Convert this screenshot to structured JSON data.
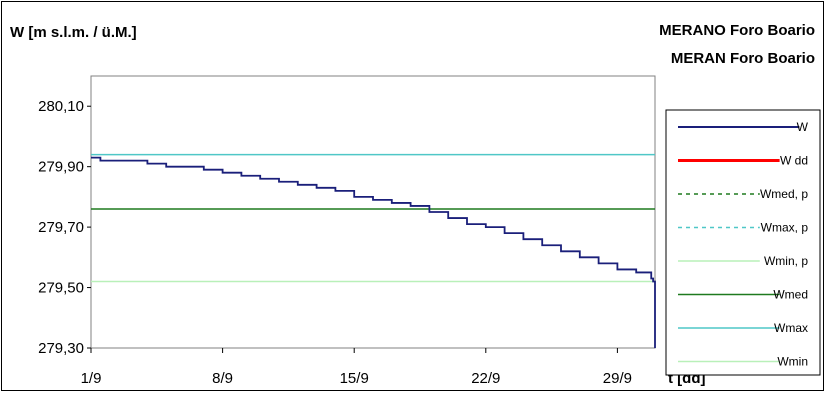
{
  "chart_data": {
    "type": "line",
    "title": "MERANO Foro Boario",
    "subtitle": "MERAN Foro Boario",
    "ylabel": "W [m s.l.m. / ü.M.]",
    "xlabel": "t [dd]",
    "ylim": [
      279.3,
      280.2
    ],
    "yticks": [
      "279,30",
      "279,50",
      "279,70",
      "279,90",
      "280,10"
    ],
    "ytick_values": [
      279.3,
      279.5,
      279.7,
      279.9,
      280.1
    ],
    "xlim": [
      1,
      31
    ],
    "xticks": [
      "1/9",
      "8/9",
      "15/9",
      "22/9",
      "29/9"
    ],
    "xtick_values": [
      1,
      8,
      15,
      22,
      29
    ],
    "grid": false,
    "legend_position": "right",
    "legend": [
      {
        "name": "W",
        "color": "#1a1f7a",
        "style": "solid"
      },
      {
        "name": "W dd",
        "color": "#ff0000",
        "style": "solid"
      },
      {
        "name": "Wmed, p",
        "color": "#1f7a1f",
        "style": "dashed"
      },
      {
        "name": "Wmax, p",
        "color": "#4fc7c7",
        "style": "dashed"
      },
      {
        "name": "Wmin, p",
        "color": "#b9f0b9",
        "style": "solid"
      },
      {
        "name": "Wmed",
        "color": "#1f7a1f",
        "style": "solid"
      },
      {
        "name": "Wmax",
        "color": "#4fc7c7",
        "style": "solid"
      },
      {
        "name": "Wmin",
        "color": "#b9f0b9",
        "style": "solid"
      }
    ],
    "series": [
      {
        "name": "W",
        "color": "#1a1f7a",
        "x": [
          1.0,
          1.1,
          1.5,
          2.0,
          3.0,
          4.0,
          5.0,
          6.0,
          7.0,
          8.0,
          9.0,
          10.0,
          11.0,
          12.0,
          13.0,
          14.0,
          15.0,
          16.0,
          17.0,
          18.0,
          19.0,
          20.0,
          21.0,
          22.0,
          23.0,
          24.0,
          25.0,
          26.0,
          27.0,
          28.0,
          29.0,
          30.0,
          30.8,
          30.9,
          31.0
        ],
        "y": [
          279.93,
          279.93,
          279.92,
          279.92,
          279.92,
          279.91,
          279.9,
          279.9,
          279.89,
          279.88,
          279.87,
          279.86,
          279.85,
          279.84,
          279.83,
          279.82,
          279.8,
          279.79,
          279.78,
          279.77,
          279.75,
          279.73,
          279.71,
          279.7,
          279.68,
          279.66,
          279.64,
          279.62,
          279.6,
          279.58,
          279.56,
          279.55,
          279.53,
          279.52,
          279.3
        ]
      },
      {
        "name": "Wmed",
        "color": "#1f7a1f",
        "x": [
          1,
          31
        ],
        "y": [
          279.76,
          279.76
        ]
      },
      {
        "name": "Wmax",
        "color": "#4fc7c7",
        "x": [
          1,
          31
        ],
        "y": [
          279.94,
          279.94
        ]
      },
      {
        "name": "Wmin",
        "color": "#b9f0b9",
        "x": [
          1,
          31
        ],
        "y": [
          279.52,
          279.52
        ]
      }
    ]
  }
}
